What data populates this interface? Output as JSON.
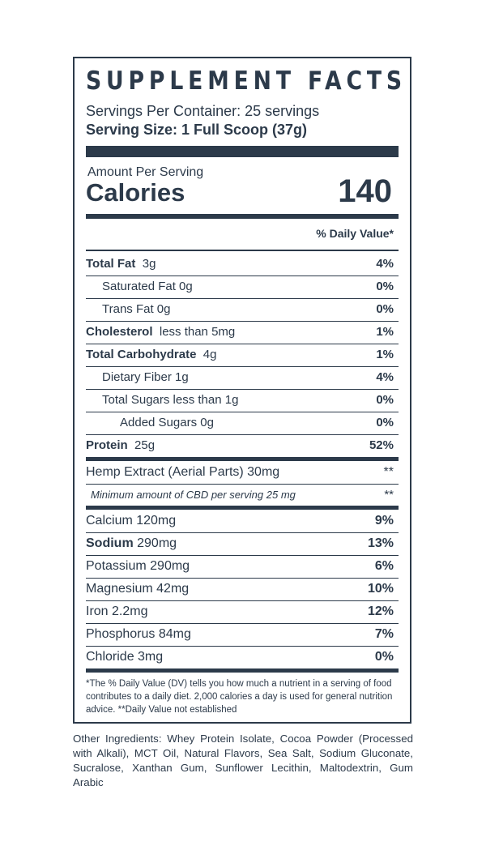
{
  "title": "SUPPLEMENT FACTS",
  "servings_per_container": "Servings Per Container:  25 servings",
  "serving_size": "Serving Size:  1 Full Scoop (37g)",
  "amount_per_serving": "Amount Per Serving",
  "calories_label": "Calories",
  "calories_value": "140",
  "dv_header": "% Daily Value*",
  "macros": [
    {
      "name": "Total Fat",
      "amount": "3g",
      "dv": "4%"
    },
    {
      "name": "Saturated Fat  0g",
      "amount": "",
      "dv": "0%"
    },
    {
      "name": "Trans Fat  0g",
      "amount": "",
      "dv": "0%"
    },
    {
      "name": "Cholesterol",
      "amount": "less than 5mg",
      "dv": "1%"
    },
    {
      "name": "Total Carbohydrate",
      "amount": "4g",
      "dv": "1%"
    },
    {
      "name": "Dietary Fiber  1g",
      "amount": "",
      "dv": "4%"
    },
    {
      "name": "Total Sugars  less than 1g",
      "amount": "",
      "dv": "0%"
    },
    {
      "name": "Added Sugars 0g",
      "amount": "",
      "dv": "0%"
    },
    {
      "name": "Protein",
      "amount": "25g",
      "dv": "52%"
    }
  ],
  "hemp": {
    "name": "Hemp Extract (Aerial Parts)  30mg",
    "dv": "**"
  },
  "cbd_note": {
    "text": "Minimum amount of CBD per serving 25 mg",
    "dv": "**"
  },
  "minerals": [
    {
      "name": "Calcium  120mg",
      "dv": "9%"
    },
    {
      "name": "Sodium",
      "amount": "290mg",
      "dv": "13%"
    },
    {
      "name": "Potassium  290mg",
      "dv": "6%"
    },
    {
      "name": "Magnesium  42mg",
      "dv": "10%"
    },
    {
      "name": "Iron 2.2mg",
      "dv": "12%"
    },
    {
      "name": "Phosphorus 84mg",
      "dv": "7%"
    },
    {
      "name": "Chloride  3mg",
      "dv": "0%"
    }
  ],
  "footnote": "*The % Daily Value (DV) tells you how much a nutrient in a serving of food contributes to a daily diet. 2,000 calories a day is used for general nutrition advice. **Daily Value not established",
  "other_ingredients": "Other Ingredients: Whey Protein Isolate, Cocoa Powder (Processed with Alkali), MCT Oil, Natural Flavors, Sea Salt, Sodium Gluconate, Sucralose, Xanthan Gum, Sunflower Lecithin, Maltodextrin, Gum Arabic",
  "colors": {
    "ink": "#2c3a4a",
    "background": "#ffffff"
  }
}
